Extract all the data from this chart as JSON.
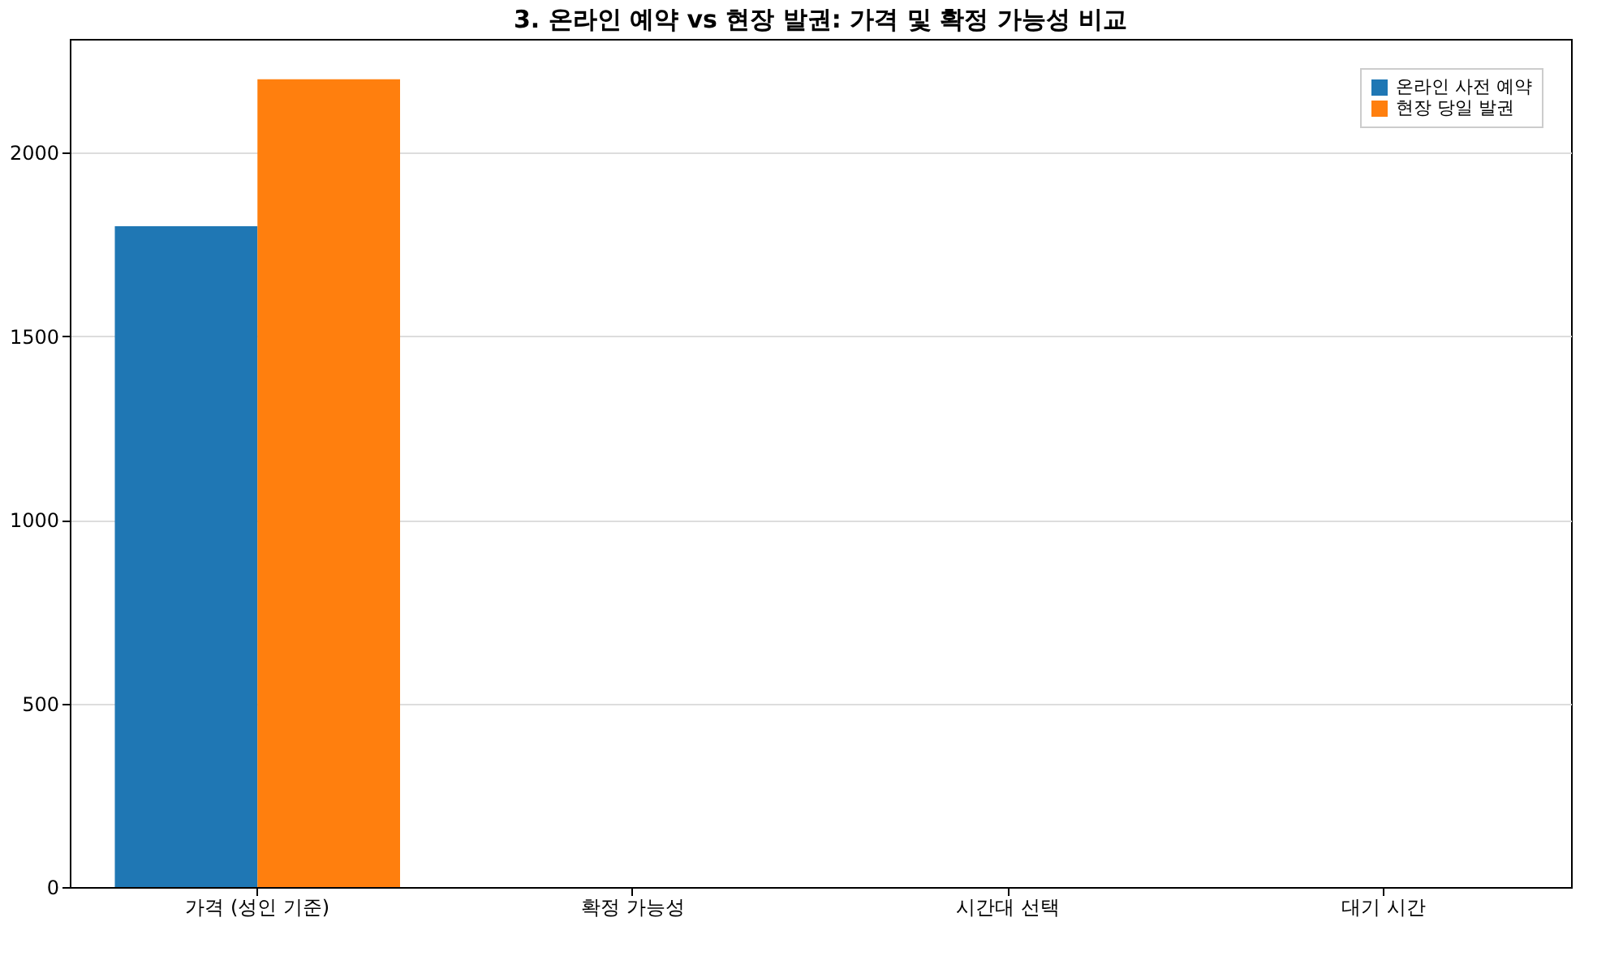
{
  "chart_data": {
    "type": "bar",
    "title": "3. 온라인 예약 vs 현장 발권: 가격 및 확정 가능성 비교",
    "categories": [
      "가격 (성인 기준)",
      "확정 가능성",
      "시간대 선택",
      "대기 시간"
    ],
    "series": [
      {
        "name": "온라인 사전 예약",
        "color": "#1f77b4",
        "values": [
          1800,
          null,
          null,
          null
        ]
      },
      {
        "name": "현장 당일 발권",
        "color": "#ff7f0e",
        "values": [
          2200,
          null,
          null,
          null
        ]
      }
    ],
    "ylim": [
      0,
      2310
    ],
    "yticks": [
      0,
      500,
      1000,
      1500,
      2000
    ],
    "grid": "y",
    "legend": "top right"
  }
}
